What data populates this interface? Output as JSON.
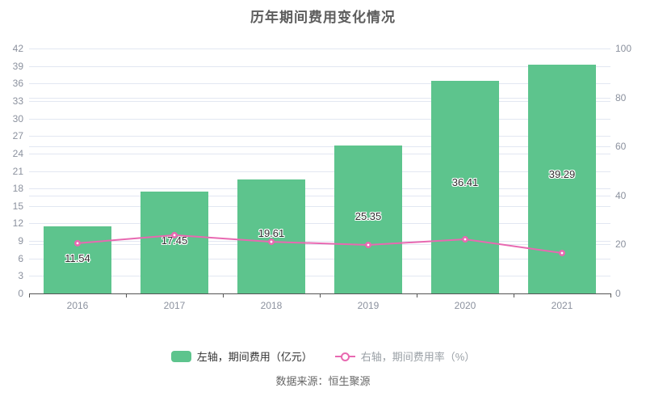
{
  "title": "历年期间费用变化情况",
  "source": "数据来源：恒生聚源",
  "legend": [
    {
      "label": "左轴，期间费用（亿元）",
      "type": "bar",
      "color": "#5dc48d",
      "text_color": "#333333"
    },
    {
      "label": "右轴，期间费用率（%）",
      "type": "line",
      "color": "#e869b1",
      "text_color": "#9aa0a6"
    }
  ],
  "colors": {
    "bar": "#5dc48d",
    "line": "#e869b1",
    "grid": "#e2e7f2",
    "axis_line": "#555555",
    "tick_label": "#8b919e",
    "title": "#5c5c5c",
    "bar_value_label": "#2f2f2f"
  },
  "chart_data": {
    "type": "bar",
    "title": "历年期间费用变化情况",
    "categories": [
      "2016",
      "2017",
      "2018",
      "2019",
      "2020",
      "2021"
    ],
    "series": [
      {
        "name": "左轴，期间费用（亿元）",
        "type": "bar",
        "axis": "left",
        "color": "#5dc48d",
        "values": [
          11.54,
          17.45,
          19.61,
          25.35,
          36.41,
          39.29
        ],
        "labels": [
          "11.54",
          "17.45",
          "19.61",
          "25.35",
          "36.41",
          "39.29"
        ]
      },
      {
        "name": "右轴，期间费用率（%）",
        "type": "line",
        "axis": "right",
        "color": "#e869b1",
        "values": [
          20.5,
          23.8,
          21.1,
          19.8,
          22.1,
          16.5
        ],
        "values_estimated": true
      }
    ],
    "left_axis": {
      "min": 0,
      "max": 42,
      "step": 3,
      "ticks": [
        0,
        3,
        6,
        9,
        12,
        15,
        18,
        21,
        24,
        27,
        30,
        33,
        36,
        39,
        42
      ]
    },
    "right_axis": {
      "min": 0,
      "max": 100,
      "step": 20,
      "ticks": [
        0,
        20,
        40,
        60,
        80,
        100
      ]
    },
    "grid": true,
    "legend_position": "bottom",
    "xlabel": "",
    "ylabel_left": "亿元",
    "ylabel_right": "%"
  }
}
